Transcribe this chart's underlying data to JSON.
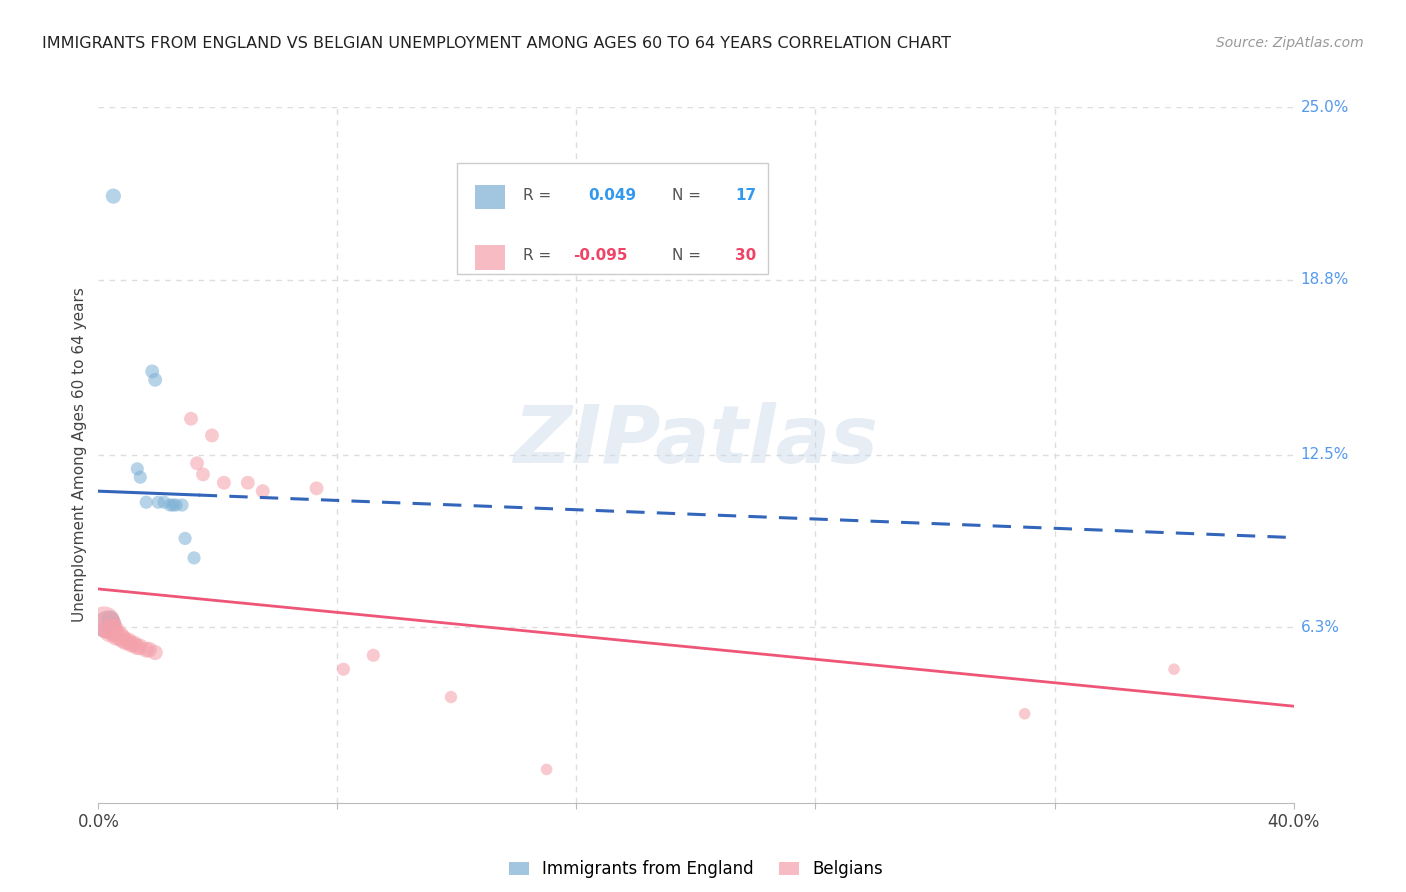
{
  "title": "IMMIGRANTS FROM ENGLAND VS BELGIAN UNEMPLOYMENT AMONG AGES 60 TO 64 YEARS CORRELATION CHART",
  "source": "Source: ZipAtlas.com",
  "ylabel": "Unemployment Among Ages 60 to 64 years",
  "xlim": [
    0.0,
    0.4
  ],
  "ylim": [
    0.0,
    0.25
  ],
  "ytick_labels_right": [
    "25.0%",
    "18.8%",
    "12.5%",
    "6.3%"
  ],
  "ytick_values_right": [
    0.25,
    0.188,
    0.125,
    0.063
  ],
  "blue_color": "#7BAFD4",
  "pink_color": "#F4A0AA",
  "blue_line_color": "#3366BB",
  "pink_line_color": "#EE5577",
  "blue_scatter": [
    [
      0.005,
      0.218
    ],
    [
      0.018,
      0.155
    ],
    [
      0.019,
      0.152
    ],
    [
      0.013,
      0.12
    ],
    [
      0.014,
      0.117
    ],
    [
      0.016,
      0.108
    ],
    [
      0.02,
      0.108
    ],
    [
      0.022,
      0.108
    ],
    [
      0.024,
      0.107
    ],
    [
      0.025,
      0.107
    ],
    [
      0.026,
      0.107
    ],
    [
      0.028,
      0.107
    ],
    [
      0.029,
      0.095
    ],
    [
      0.032,
      0.088
    ],
    [
      0.004,
      0.066
    ],
    [
      0.004,
      0.064
    ],
    [
      0.003,
      0.064
    ]
  ],
  "pink_scatter": [
    [
      0.002,
      0.065
    ],
    [
      0.003,
      0.064
    ],
    [
      0.004,
      0.062
    ],
    [
      0.005,
      0.062
    ],
    [
      0.006,
      0.06
    ],
    [
      0.007,
      0.06
    ],
    [
      0.008,
      0.059
    ],
    [
      0.009,
      0.058
    ],
    [
      0.01,
      0.058
    ],
    [
      0.011,
      0.057
    ],
    [
      0.012,
      0.057
    ],
    [
      0.013,
      0.056
    ],
    [
      0.014,
      0.056
    ],
    [
      0.016,
      0.055
    ],
    [
      0.017,
      0.055
    ],
    [
      0.019,
      0.054
    ],
    [
      0.031,
      0.138
    ],
    [
      0.033,
      0.122
    ],
    [
      0.035,
      0.118
    ],
    [
      0.038,
      0.132
    ],
    [
      0.042,
      0.115
    ],
    [
      0.05,
      0.115
    ],
    [
      0.055,
      0.112
    ],
    [
      0.073,
      0.113
    ],
    [
      0.082,
      0.048
    ],
    [
      0.092,
      0.053
    ],
    [
      0.118,
      0.038
    ],
    [
      0.15,
      0.012
    ],
    [
      0.31,
      0.032
    ],
    [
      0.36,
      0.048
    ]
  ],
  "blue_scatter_sizes": [
    120,
    100,
    100,
    90,
    90,
    90,
    90,
    90,
    90,
    90,
    90,
    90,
    90,
    90,
    160,
    160,
    400
  ],
  "pink_scatter_sizes": [
    500,
    400,
    300,
    250,
    200,
    200,
    180,
    160,
    160,
    150,
    150,
    140,
    140,
    130,
    130,
    120,
    100,
    100,
    100,
    100,
    100,
    100,
    100,
    100,
    90,
    90,
    80,
    70,
    70,
    70
  ],
  "watermark": "ZIPatlas",
  "grid_color": "#DDDDDD"
}
